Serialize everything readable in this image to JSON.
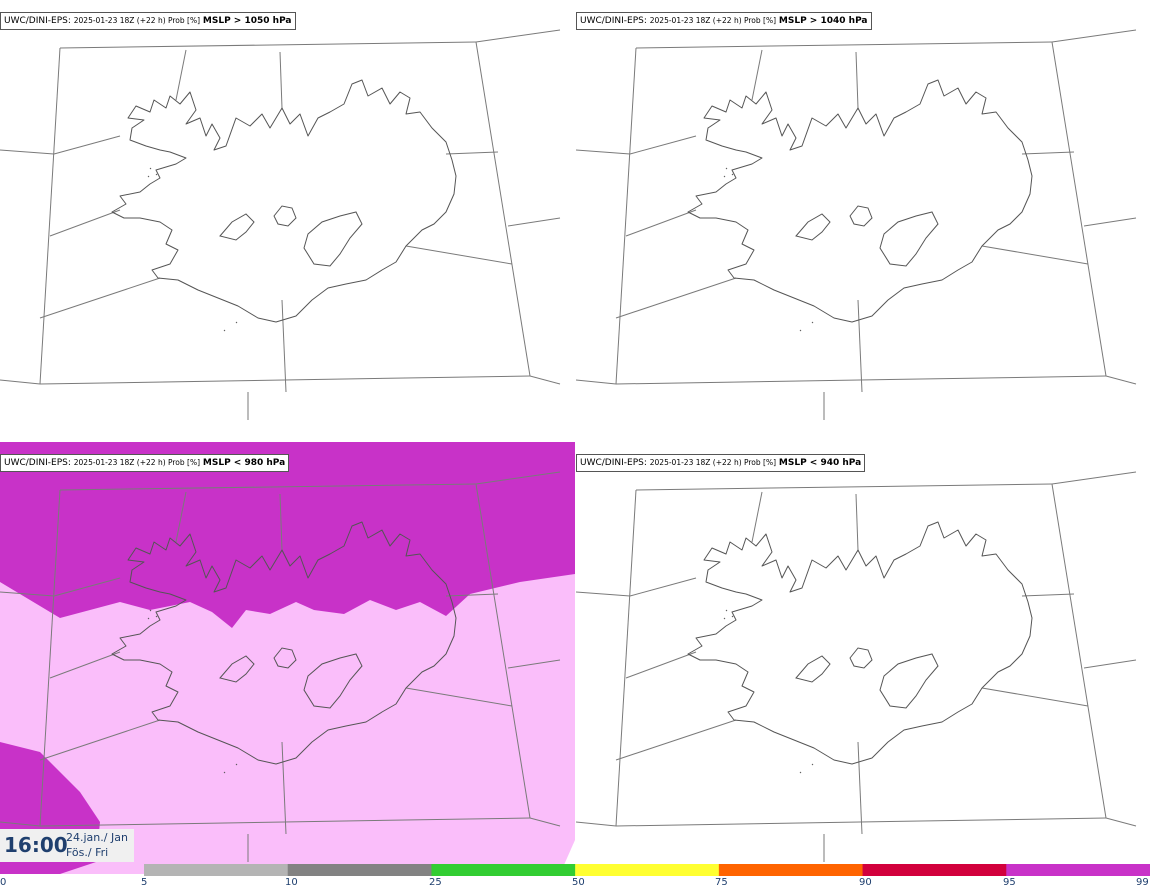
{
  "model": "UWC/DINI-EPS",
  "run_info": "2025-01-23 18Z (+22 h) Prob [%]",
  "panels": [
    {
      "id": "p0",
      "threshold": "MSLP > 1050 hPa",
      "filled": false
    },
    {
      "id": "p1",
      "threshold": "MSLP > 1040 hPa",
      "filled": false
    },
    {
      "id": "p2",
      "threshold": "MSLP < 980 hPa",
      "filled": true
    },
    {
      "id": "p3",
      "threshold": "MSLP < 940 hPa",
      "filled": false
    }
  ],
  "valid_time": {
    "time": "16:00",
    "date_line1": "24.jan./ Jan",
    "date_line2": "Fös./ Fri"
  },
  "colorbar": {
    "ticks": [
      "0",
      "5",
      "10",
      "25",
      "50",
      "75",
      "90",
      "95",
      "99"
    ],
    "colors": [
      "#ffffff",
      "#b4b4b4",
      "#828282",
      "#32cd32",
      "#ffff32",
      "#ff6400",
      "#d2003c",
      "#c832c8",
      "#fabefa"
    ]
  }
}
